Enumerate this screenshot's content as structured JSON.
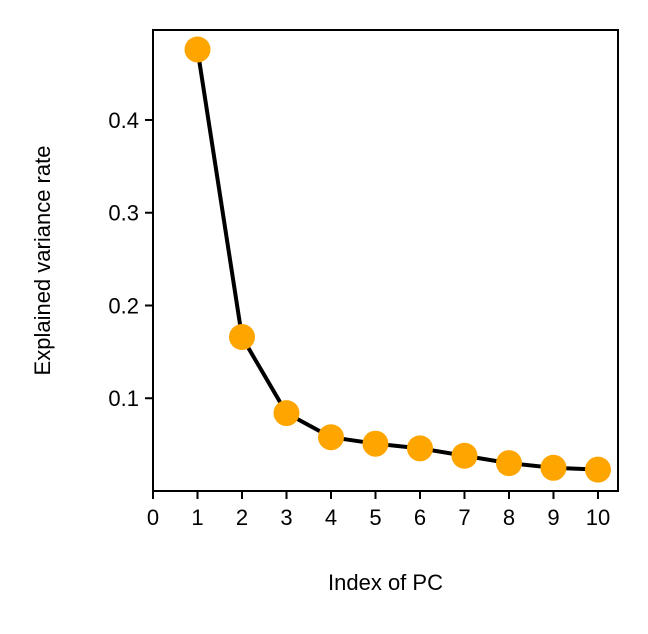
{
  "chart_data": {
    "type": "line",
    "title": "",
    "xlabel": "Index of PC",
    "ylabel": "Explained variance rate",
    "x": [
      1,
      2,
      3,
      4,
      5,
      6,
      7,
      8,
      9,
      10
    ],
    "series": [
      {
        "values": [
          0.476,
          0.166,
          0.084,
          0.058,
          0.051,
          0.046,
          0.038,
          0.03,
          0.025,
          0.023
        ]
      }
    ],
    "xlim": [
      0,
      10.45
    ],
    "ylim": [
      0.0,
      0.497
    ],
    "xticks": [
      0,
      1,
      2,
      3,
      4,
      5,
      6,
      7,
      8,
      9,
      10
    ],
    "xtick_labels": [
      "0",
      "1",
      "2",
      "3",
      "4",
      "5",
      "6",
      "7",
      "8",
      "9",
      "10"
    ],
    "yticks": [
      0.1,
      0.2,
      0.3,
      0.4
    ],
    "ytick_labels": [
      "0.1",
      "0.2",
      "0.3",
      "0.4"
    ],
    "grid": false,
    "legend": "none",
    "line_color": "#000000",
    "marker_color": "#FFA500"
  }
}
